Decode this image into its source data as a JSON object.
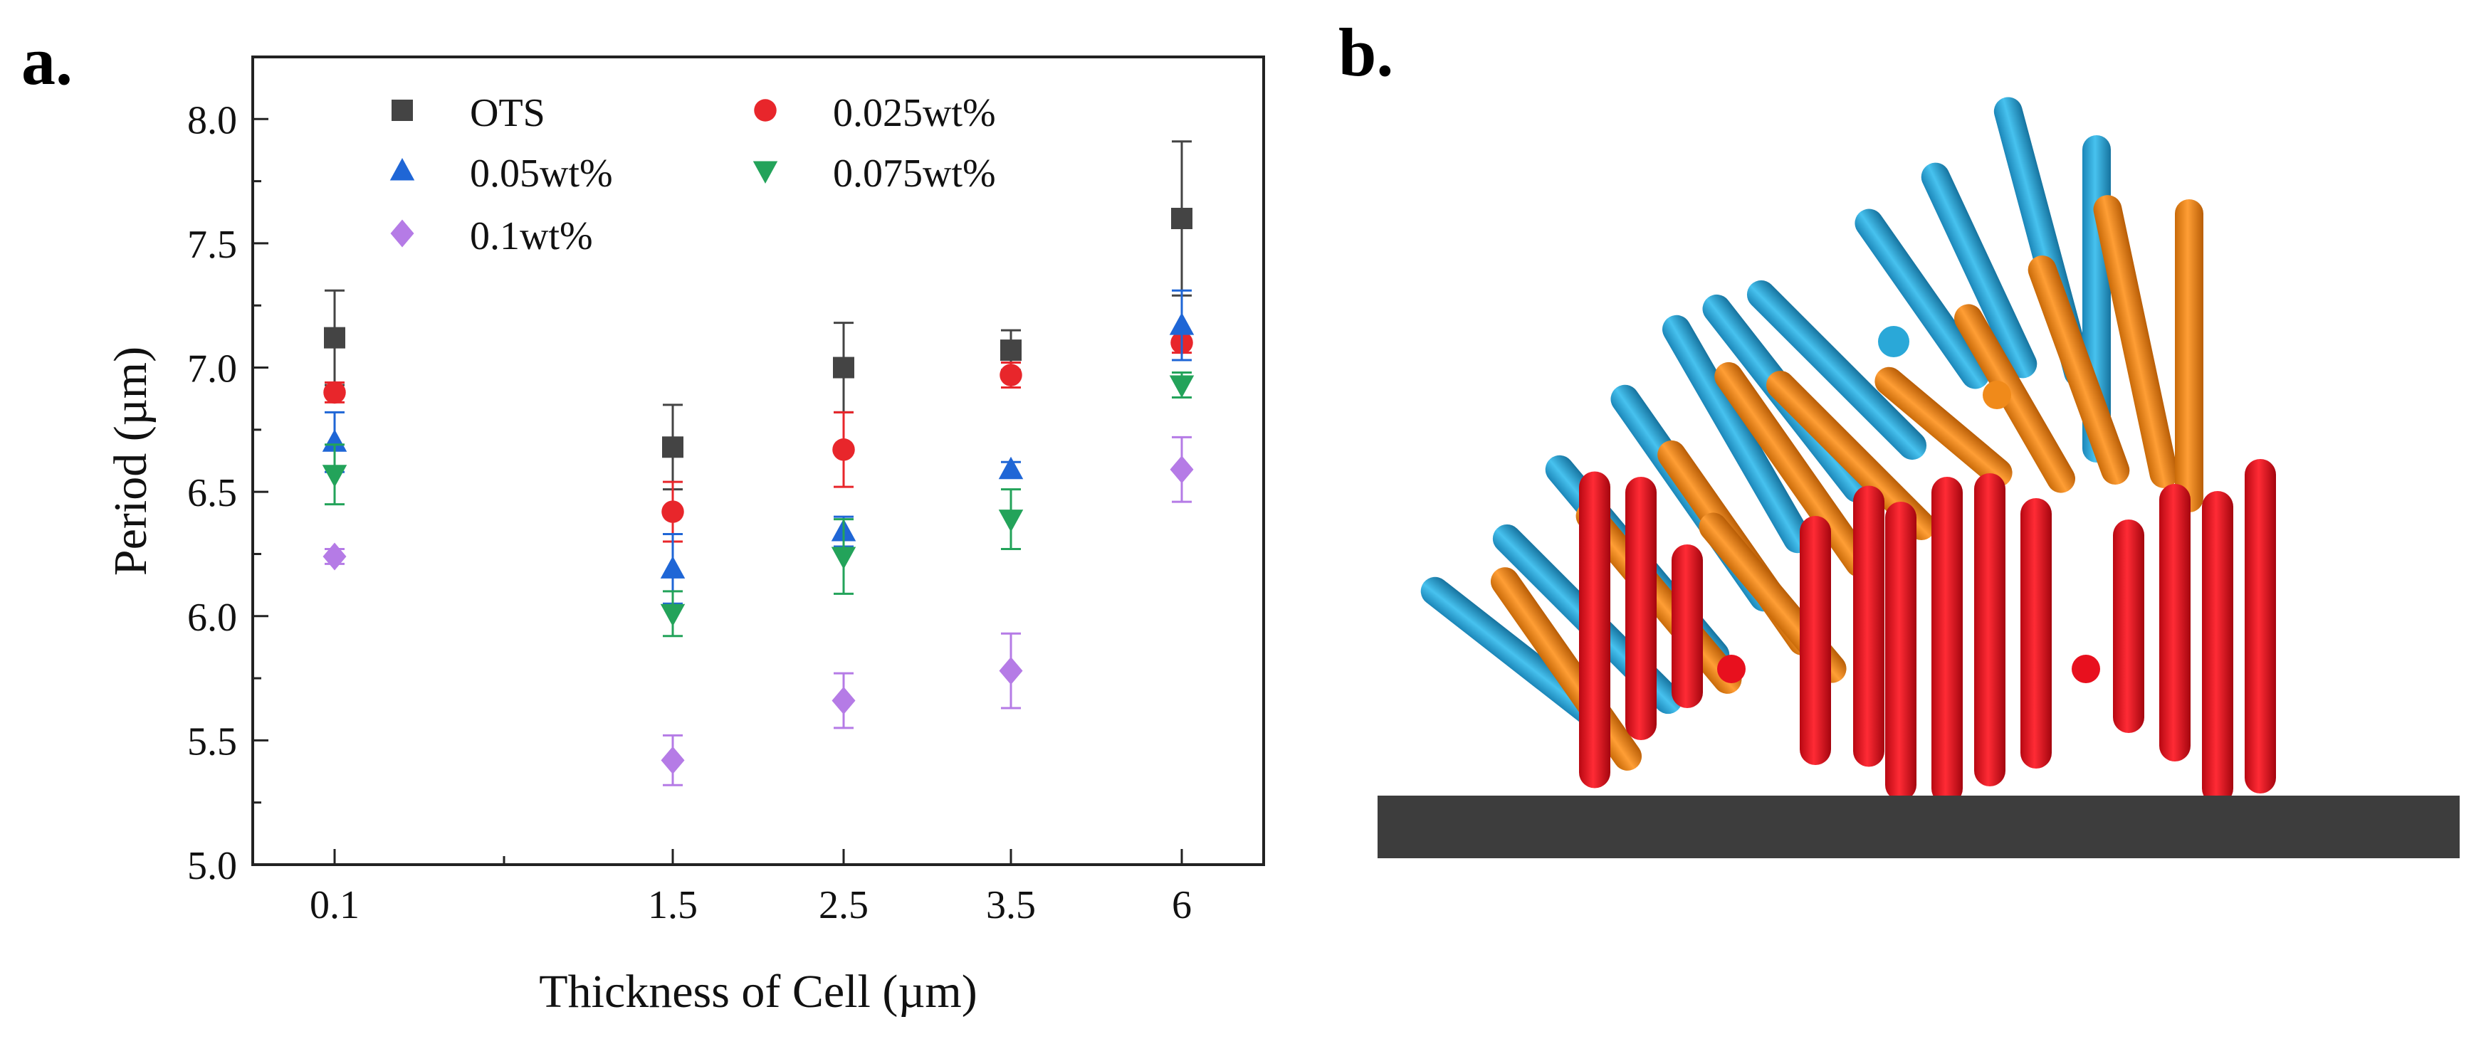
{
  "panels": {
    "a": "a.",
    "b": "b."
  },
  "chart_data": {
    "type": "scatter",
    "xlabel": "Thickness of Cell (µm)",
    "ylabel": "Period (µm)",
    "ylim": [
      5.0,
      8.25
    ],
    "yticks": [
      "5.0",
      "5.5",
      "6.0",
      "6.5",
      "7.0",
      "7.5",
      "8.0"
    ],
    "xticks": [
      "0.1",
      "1.5",
      "2.5",
      "3.5",
      "6"
    ],
    "legend_position": "top",
    "series": [
      {
        "name": "OTS",
        "color": "#444444",
        "marker": "square",
        "values": [
          7.12,
          6.68,
          7.0,
          7.07,
          7.6
        ],
        "errors": [
          0.19,
          0.17,
          0.18,
          0.08,
          0.31
        ]
      },
      {
        "name": "0.025wt%",
        "color": "#e8262b",
        "marker": "circle",
        "values": [
          6.9,
          6.42,
          6.67,
          6.97,
          7.1
        ],
        "errors": [
          0.04,
          0.12,
          0.15,
          0.05,
          0.04
        ]
      },
      {
        "name": "0.05wt%",
        "color": "#1f66d6",
        "marker": "triangle-up",
        "values": [
          6.7,
          6.19,
          6.34,
          6.59,
          7.17
        ],
        "errors": [
          0.12,
          0.14,
          0.06,
          0.03,
          0.14
        ]
      },
      {
        "name": "0.075wt%",
        "color": "#23a35a",
        "marker": "triangle-down",
        "values": [
          6.57,
          6.01,
          6.24,
          6.39,
          6.93
        ],
        "errors": [
          0.12,
          0.09,
          0.15,
          0.12,
          0.05
        ]
      },
      {
        "name": "0.1wt%",
        "color": "#b57be6",
        "marker": "diamond",
        "values": [
          6.24,
          5.42,
          5.66,
          5.78,
          6.59
        ],
        "errors": [
          0.03,
          0.1,
          0.11,
          0.15,
          0.13
        ]
      }
    ]
  },
  "illustration": {
    "colors": {
      "blue": "#2aa8d8",
      "orange": "#f08a1a",
      "red": "#e8101e",
      "substrate": "#3d3d3d"
    }
  }
}
